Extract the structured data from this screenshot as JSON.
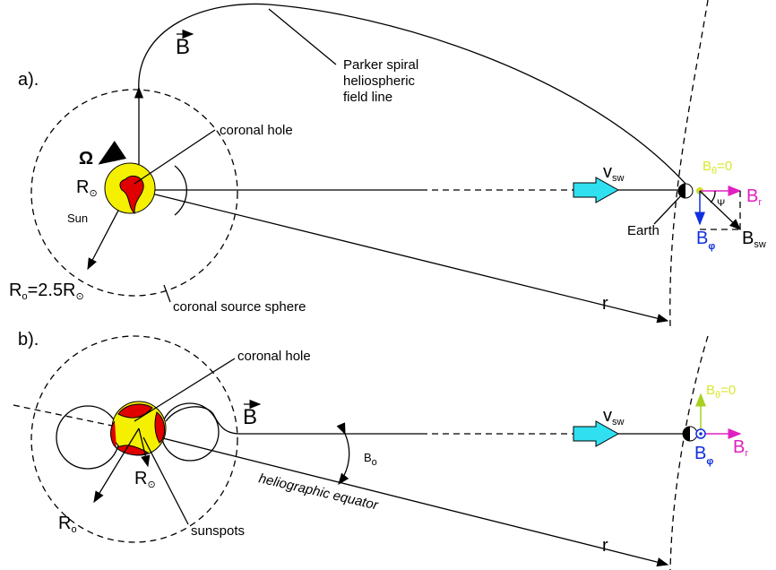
{
  "panel_a": {
    "label": "a).",
    "field_symbol": "B",
    "field_line_label": [
      "Parker spiral",
      "heliospheric",
      "field line"
    ],
    "coronal_hole": "coronal hole",
    "omega": "Ω",
    "sun_radius": {
      "main": "R",
      "sub": "⊙"
    },
    "sun": "Sun",
    "source_radius": {
      "main": "R",
      "sub": "o",
      "rest": "=2.5R",
      "sub2": "⊙"
    },
    "source_sphere": "coronal source sphere",
    "wind": {
      "main": "v",
      "sub": "sw"
    },
    "earth": "Earth",
    "b_theta": {
      "main": "B",
      "sub": "θ",
      "rest": "=0"
    },
    "psi": "Ψ",
    "b_r": {
      "main": "B",
      "sub": "r"
    },
    "b_phi": {
      "main": "B",
      "sub": "φ"
    },
    "b_sw": {
      "main": "B",
      "sub": "sw"
    },
    "r": "r"
  },
  "panel_b": {
    "label": "b).",
    "coronal_hole": "coronal hole",
    "field_symbol": "B",
    "wind": {
      "main": "v",
      "sub": "sw"
    },
    "b_theta": {
      "main": "B",
      "sub": "θ",
      "rest": "=0"
    },
    "b_phi": {
      "main": "B",
      "sub": "φ"
    },
    "b_r": {
      "main": "B",
      "sub": "r"
    },
    "b_zero": {
      "main": "B",
      "sub": "o"
    },
    "equator": "heliographic equator",
    "sun_radius": {
      "main": "R",
      "sub": "⊙"
    },
    "source_radius": {
      "main": "R",
      "sub": "o"
    },
    "sunspots": "sunspots",
    "r": "r"
  }
}
